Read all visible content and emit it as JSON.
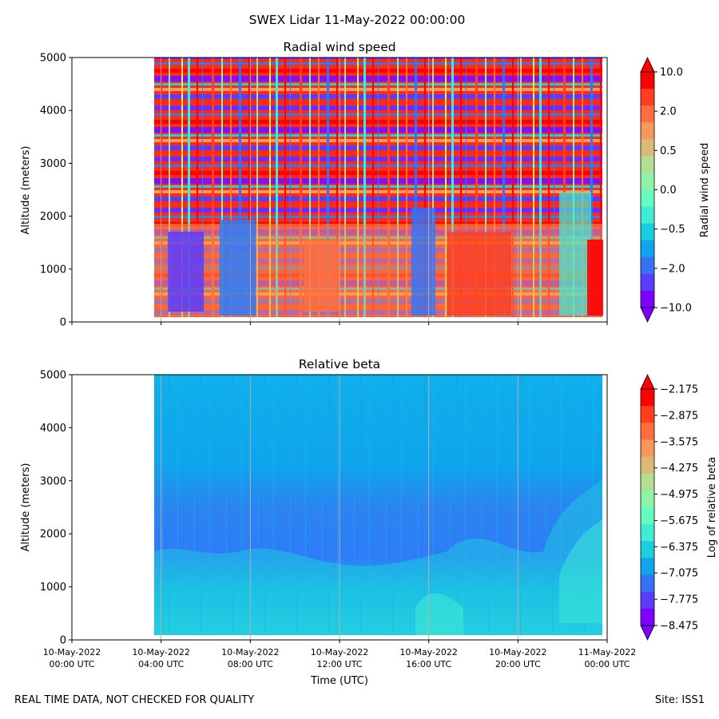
{
  "suptitle": "SWEX Lidar 11-May-2022 00:00:00",
  "footer": {
    "left": "REAL TIME DATA, NOT CHECKED FOR QUALITY",
    "right": "Site: ISS1"
  },
  "colors": {
    "rainbow": [
      "#8000ff",
      "#5a3cfd",
      "#3473f6",
      "#0ea5ec",
      "#1acfe0",
      "#40ecd4",
      "#66fcc0",
      "#8ef3a8",
      "#b4df90",
      "#dbb976",
      "#f6995a",
      "#ff6f3e",
      "#ff3f1f",
      "#ff0000"
    ],
    "grid": "#b0b0b0"
  },
  "chart_data": [
    {
      "type": "heatmap",
      "title": "Radial wind speed",
      "xlabel": "",
      "ylabel": "Altitude (meters)",
      "xlim": [
        "2022-05-10T00:00",
        "2022-05-11T00:00"
      ],
      "ylim": [
        0,
        5000
      ],
      "yticks": [
        "0",
        "1000",
        "2000",
        "3000",
        "4000",
        "5000"
      ],
      "x_tick_labels": [],
      "data_extent_x": [
        "2022-05-10T03:45",
        "2022-05-10T23:45"
      ],
      "data_extent_y": [
        100,
        5000
      ],
      "grid": true,
      "colorbar": {
        "label": "Radial wind speed",
        "tick_labels": [
          "10.0",
          "2.0",
          "0.5",
          "0.0",
          "−0.5",
          "−2.0",
          "−10.0"
        ],
        "extend": "both",
        "bands": 14
      }
    },
    {
      "type": "heatmap",
      "title": "Relative beta",
      "xlabel": "Time (UTC)",
      "ylabel": "Altitude (meters)",
      "xlim": [
        "2022-05-10T00:00",
        "2022-05-11T00:00"
      ],
      "ylim": [
        0,
        5000
      ],
      "yticks": [
        "0",
        "1000",
        "2000",
        "3000",
        "4000",
        "5000"
      ],
      "x_tick_labels": [
        {
          "date": "10-May-2022",
          "time": "00:00 UTC"
        },
        {
          "date": "10-May-2022",
          "time": "04:00 UTC"
        },
        {
          "date": "10-May-2022",
          "time": "08:00 UTC"
        },
        {
          "date": "10-May-2022",
          "time": "12:00 UTC"
        },
        {
          "date": "10-May-2022",
          "time": "16:00 UTC"
        },
        {
          "date": "10-May-2022",
          "time": "20:00 UTC"
        },
        {
          "date": "11-May-2022",
          "time": "00:00 UTC"
        }
      ],
      "data_extent_x": [
        "2022-05-10T03:45",
        "2022-05-10T23:45"
      ],
      "data_extent_y": [
        100,
        5000
      ],
      "grid": true,
      "colorbar": {
        "label": "Log of relative beta",
        "tick_labels": [
          "−2.175",
          "−2.875",
          "−3.575",
          "−4.275",
          "−4.975",
          "−5.675",
          "−6.375",
          "−7.075",
          "−7.775",
          "−8.475"
        ],
        "extend": "both",
        "bands": 14
      }
    }
  ]
}
